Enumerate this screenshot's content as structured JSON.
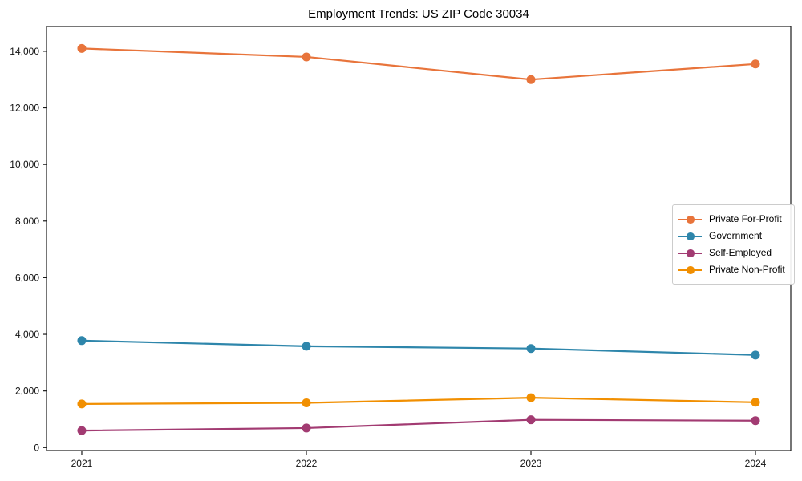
{
  "chart_data": {
    "type": "line",
    "title": "Employment Trends: US ZIP Code 30034",
    "xlabel": "",
    "ylabel": "",
    "categories": [
      "2021",
      "2022",
      "2023",
      "2024"
    ],
    "series": [
      {
        "name": "Private For-Profit",
        "color": "#E8743B",
        "values": [
          14100,
          13800,
          13000,
          13550
        ]
      },
      {
        "name": "Government",
        "color": "#2E86AB",
        "values": [
          3780,
          3580,
          3500,
          3270
        ]
      },
      {
        "name": "Self-Employed",
        "color": "#A23B72",
        "values": [
          600,
          690,
          980,
          950
        ]
      },
      {
        "name": "Private Non-Profit",
        "color": "#F18F01",
        "values": [
          1540,
          1580,
          1760,
          1600
        ]
      }
    ],
    "ylim": [
      -105,
      14875
    ],
    "yticks": [
      0,
      2000,
      4000,
      6000,
      8000,
      10000,
      12000,
      14000
    ],
    "grid": false,
    "legend_position": "center-right",
    "axis_color": "#1a1a1a",
    "text_color": "#111111",
    "background_color": "#ffffff",
    "marker": "circle",
    "marker_radius": 5.5,
    "line_width": 2.2
  }
}
